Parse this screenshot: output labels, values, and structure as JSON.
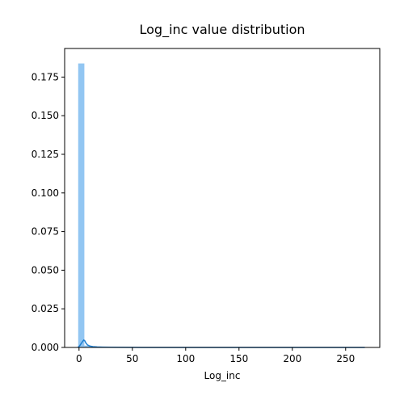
{
  "chart_data": {
    "type": "bar",
    "title": "Log_inc value distribution",
    "xlabel": "Log_inc",
    "ylabel": "",
    "xlim": [
      -13.5,
      282
    ],
    "ylim": [
      0,
      0.1935
    ],
    "x_ticks": [
      0,
      50,
      100,
      150,
      200,
      250
    ],
    "x_tick_labels": [
      "0",
      "50",
      "100",
      "150",
      "200",
      "250"
    ],
    "y_ticks": [
      0.0,
      0.025,
      0.05,
      0.075,
      0.1,
      0.125,
      0.15,
      0.175
    ],
    "y_tick_labels": [
      "0.000",
      "0.025",
      "0.050",
      "0.075",
      "0.100",
      "0.125",
      "0.150",
      "0.175"
    ],
    "grid": false,
    "series": [
      {
        "type": "histogram",
        "bins": [
          {
            "x0": -0.8,
            "x1": 5.0,
            "value": 0.1838
          },
          {
            "x0": 5.0,
            "x1": 10.8,
            "value": 0.0012
          },
          {
            "x0": 10.8,
            "x1": 16.6,
            "value": 0.0004
          },
          {
            "x0": 16.6,
            "x1": 22.4,
            "value": 0.0002
          },
          {
            "x0": 22.4,
            "x1": 28.2,
            "value": 0.0001
          }
        ],
        "color": "#92c6f2"
      },
      {
        "type": "kde-line",
        "x": [
          -1,
          0.5,
          2,
          3.5,
          4.5,
          5.5,
          6.5,
          8,
          10,
          13,
          17,
          22,
          30,
          45,
          60,
          100,
          150,
          200,
          250,
          268
        ],
        "values": [
          0.0,
          0.001,
          0.0025,
          0.004,
          0.0048,
          0.0042,
          0.0028,
          0.0016,
          0.0009,
          0.0005,
          0.0003,
          0.0002,
          0.0001,
          5e-05,
          3e-05,
          2e-05,
          1e-05,
          1e-05,
          1e-05,
          1e-05
        ],
        "color": "#1f7fd1"
      }
    ]
  }
}
